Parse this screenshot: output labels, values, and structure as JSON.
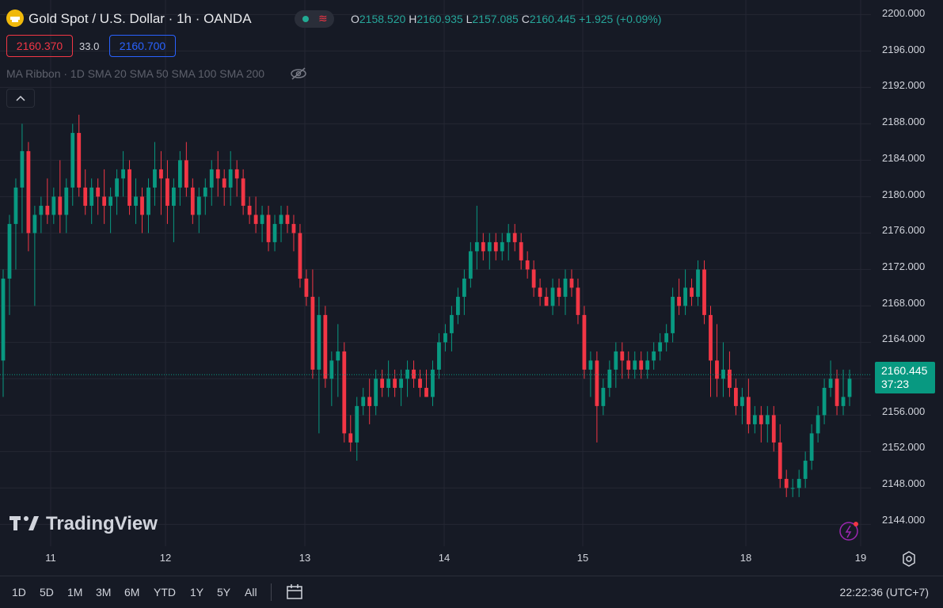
{
  "header": {
    "symbol": "Gold Spot / U.S. Dollar · 1h · OANDA",
    "ohlc": {
      "o_label": "O",
      "o": "2158.520",
      "h_label": "H",
      "h": "2160.935",
      "l_label": "L",
      "l": "2157.085",
      "c_label": "C",
      "c": "2160.445",
      "change": "+1.925 (+0.09%)"
    },
    "sell_price": "2160.370",
    "spread": "33.0",
    "buy_price": "2160.700",
    "indicator": "MA Ribbon · 1D SMA 20 SMA 50 SMA 100 SMA 200"
  },
  "colors": {
    "bg": "#161a25",
    "up": "#089981",
    "down": "#f23645",
    "grid": "#242733",
    "text": "#d1d4dc"
  },
  "price_axis": [
    "2200.000",
    "2196.000",
    "2192.000",
    "2188.000",
    "2184.000",
    "2180.000",
    "2176.000",
    "2172.000",
    "2168.000",
    "2164.000",
    "2160.000",
    "2156.000",
    "2152.000",
    "2148.000",
    "2144.000"
  ],
  "last_price": {
    "value": "2160.445",
    "countdown": "37:23"
  },
  "time_axis": [
    "11",
    "12",
    "13",
    "14",
    "15",
    "18",
    "19"
  ],
  "watermark": "TradingView",
  "ranges": [
    "1D",
    "5D",
    "1M",
    "3M",
    "6M",
    "YTD",
    "1Y",
    "5Y",
    "All"
  ],
  "clock": "22:22:36 (UTC+7)",
  "chart_data": {
    "type": "candlestick",
    "x_labels": [
      "11",
      "12",
      "13",
      "14",
      "15",
      "18",
      "19"
    ],
    "ylim": [
      2141.6,
      2201.6
    ],
    "last_price": 2160.445,
    "candles": [
      [
        2162,
        2172,
        2158,
        2171
      ],
      [
        2171,
        2178,
        2167,
        2177
      ],
      [
        2177,
        2182,
        2172,
        2181
      ],
      [
        2181,
        2188,
        2176,
        2185
      ],
      [
        2185,
        2186,
        2174,
        2176
      ],
      [
        2176,
        2179,
        2168,
        2178
      ],
      [
        2178,
        2180,
        2176,
        2179
      ],
      [
        2179,
        2182,
        2177,
        2178
      ],
      [
        2178,
        2181,
        2177,
        2180
      ],
      [
        2180,
        2184,
        2176,
        2178
      ],
      [
        2178,
        2182,
        2176,
        2181
      ],
      [
        2181,
        2188,
        2179,
        2187
      ],
      [
        2187,
        2189,
        2180,
        2181
      ],
      [
        2181,
        2183,
        2178,
        2179
      ],
      [
        2179,
        2182,
        2177,
        2181
      ],
      [
        2181,
        2182,
        2178,
        2180
      ],
      [
        2180,
        2183,
        2177,
        2179
      ],
      [
        2179,
        2181,
        2176,
        2180
      ],
      [
        2180,
        2183,
        2178,
        2182
      ],
      [
        2182,
        2185,
        2180,
        2183
      ],
      [
        2183,
        2184,
        2178,
        2179
      ],
      [
        2179,
        2182,
        2177,
        2180
      ],
      [
        2180,
        2181,
        2176,
        2178
      ],
      [
        2178,
        2182,
        2176,
        2181
      ],
      [
        2181,
        2186,
        2179,
        2183
      ],
      [
        2183,
        2185,
        2178,
        2182
      ],
      [
        2182,
        2184,
        2177,
        2179
      ],
      [
        2179,
        2182,
        2175,
        2181
      ],
      [
        2181,
        2185,
        2179,
        2184
      ],
      [
        2184,
        2186,
        2180,
        2181
      ],
      [
        2181,
        2182,
        2177,
        2178
      ],
      [
        2178,
        2181,
        2176,
        2180
      ],
      [
        2180,
        2182,
        2178,
        2181
      ],
      [
        2181,
        2184,
        2179,
        2183
      ],
      [
        2183,
        2185,
        2180,
        2182
      ],
      [
        2182,
        2183,
        2179,
        2181
      ],
      [
        2181,
        2185,
        2179,
        2183
      ],
      [
        2183,
        2184,
        2180,
        2182
      ],
      [
        2182,
        2183,
        2178,
        2179
      ],
      [
        2179,
        2180,
        2177,
        2178
      ],
      [
        2178,
        2180,
        2176,
        2177
      ],
      [
        2177,
        2179,
        2175,
        2178
      ],
      [
        2178,
        2179,
        2174,
        2175
      ],
      [
        2175,
        2178,
        2174,
        2177
      ],
      [
        2177,
        2179,
        2175,
        2178
      ],
      [
        2178,
        2179,
        2176,
        2177
      ],
      [
        2177,
        2178,
        2174,
        2176
      ],
      [
        2176,
        2177,
        2170,
        2171
      ],
      [
        2171,
        2172,
        2168,
        2169
      ],
      [
        2169,
        2172,
        2160,
        2161
      ],
      [
        2161,
        2169,
        2154,
        2167
      ],
      [
        2167,
        2168,
        2159,
        2160
      ],
      [
        2160,
        2163,
        2157,
        2162
      ],
      [
        2162,
        2166,
        2158,
        2163
      ],
      [
        2163,
        2164,
        2153,
        2154
      ],
      [
        2154,
        2156,
        2152,
        2153
      ],
      [
        2153,
        2158,
        2151,
        2157
      ],
      [
        2157,
        2159,
        2156,
        2158
      ],
      [
        2158,
        2160,
        2155,
        2157
      ],
      [
        2157,
        2161,
        2156,
        2160
      ],
      [
        2160,
        2161,
        2158,
        2159
      ],
      [
        2159,
        2162,
        2158,
        2160
      ],
      [
        2160,
        2161,
        2158,
        2159
      ],
      [
        2159,
        2161,
        2157,
        2160
      ],
      [
        2160,
        2162,
        2158,
        2161
      ],
      [
        2161,
        2162,
        2159,
        2160
      ],
      [
        2160,
        2161,
        2158,
        2159
      ],
      [
        2159,
        2161,
        2158,
        2158
      ],
      [
        2158,
        2162,
        2157,
        2161
      ],
      [
        2161,
        2165,
        2160,
        2164
      ],
      [
        2164,
        2166,
        2163,
        2165
      ],
      [
        2165,
        2168,
        2163,
        2167
      ],
      [
        2167,
        2170,
        2166,
        2169
      ],
      [
        2169,
        2172,
        2167,
        2171
      ],
      [
        2171,
        2175,
        2170,
        2174
      ],
      [
        2174,
        2179,
        2172,
        2175
      ],
      [
        2175,
        2176,
        2173,
        2174
      ],
      [
        2174,
        2176,
        2172,
        2175
      ],
      [
        2175,
        2176,
        2173,
        2174
      ],
      [
        2174,
        2176,
        2173,
        2175
      ],
      [
        2175,
        2177,
        2173,
        2176
      ],
      [
        2176,
        2177,
        2174,
        2175
      ],
      [
        2175,
        2176,
        2172,
        2173
      ],
      [
        2173,
        2174,
        2171,
        2172
      ],
      [
        2172,
        2173,
        2169,
        2170
      ],
      [
        2170,
        2171,
        2168,
        2169
      ],
      [
        2169,
        2170,
        2168,
        2168
      ],
      [
        2168,
        2171,
        2167,
        2170
      ],
      [
        2170,
        2171,
        2168,
        2169
      ],
      [
        2169,
        2172,
        2167,
        2171
      ],
      [
        2171,
        2172,
        2169,
        2170
      ],
      [
        2170,
        2171,
        2166,
        2167
      ],
      [
        2167,
        2168,
        2160,
        2161
      ],
      [
        2161,
        2163,
        2158,
        2162
      ],
      [
        2162,
        2163,
        2153,
        2157
      ],
      [
        2157,
        2160,
        2156,
        2159
      ],
      [
        2159,
        2162,
        2158,
        2161
      ],
      [
        2161,
        2164,
        2159,
        2163
      ],
      [
        2163,
        2164,
        2160,
        2162
      ],
      [
        2162,
        2163,
        2160,
        2161
      ],
      [
        2161,
        2163,
        2160,
        2162
      ],
      [
        2162,
        2163,
        2160,
        2161
      ],
      [
        2161,
        2163,
        2160,
        2162
      ],
      [
        2162,
        2164,
        2161,
        2163
      ],
      [
        2163,
        2165,
        2162,
        2164
      ],
      [
        2164,
        2166,
        2163,
        2165
      ],
      [
        2165,
        2170,
        2164,
        2169
      ],
      [
        2169,
        2171,
        2167,
        2168
      ],
      [
        2168,
        2172,
        2167,
        2170
      ],
      [
        2170,
        2171,
        2168,
        2169
      ],
      [
        2169,
        2173,
        2168,
        2172
      ],
      [
        2172,
        2173,
        2166,
        2167
      ],
      [
        2167,
        2168,
        2158,
        2162
      ],
      [
        2162,
        2166,
        2158,
        2160
      ],
      [
        2160,
        2164,
        2158,
        2161
      ],
      [
        2161,
        2163,
        2158,
        2159
      ],
      [
        2159,
        2160,
        2156,
        2157
      ],
      [
        2157,
        2159,
        2155,
        2158
      ],
      [
        2158,
        2160,
        2154,
        2155
      ],
      [
        2155,
        2157,
        2154,
        2156
      ],
      [
        2156,
        2157,
        2153,
        2155
      ],
      [
        2155,
        2157,
        2153,
        2156
      ],
      [
        2156,
        2157,
        2152,
        2153
      ],
      [
        2153,
        2155,
        2148,
        2149
      ],
      [
        2149,
        2150,
        2147,
        2148
      ],
      [
        2148,
        2149,
        2147,
        2148
      ],
      [
        2148,
        2150,
        2147,
        2149
      ],
      [
        2149,
        2152,
        2148,
        2151
      ],
      [
        2151,
        2155,
        2150,
        2154
      ],
      [
        2154,
        2157,
        2153,
        2156
      ],
      [
        2156,
        2160,
        2155,
        2159
      ],
      [
        2159,
        2162,
        2158,
        2160
      ],
      [
        2160,
        2161,
        2156,
        2157
      ],
      [
        2157,
        2161,
        2156,
        2158
      ],
      [
        2158,
        2161,
        2157,
        2160
      ]
    ]
  }
}
